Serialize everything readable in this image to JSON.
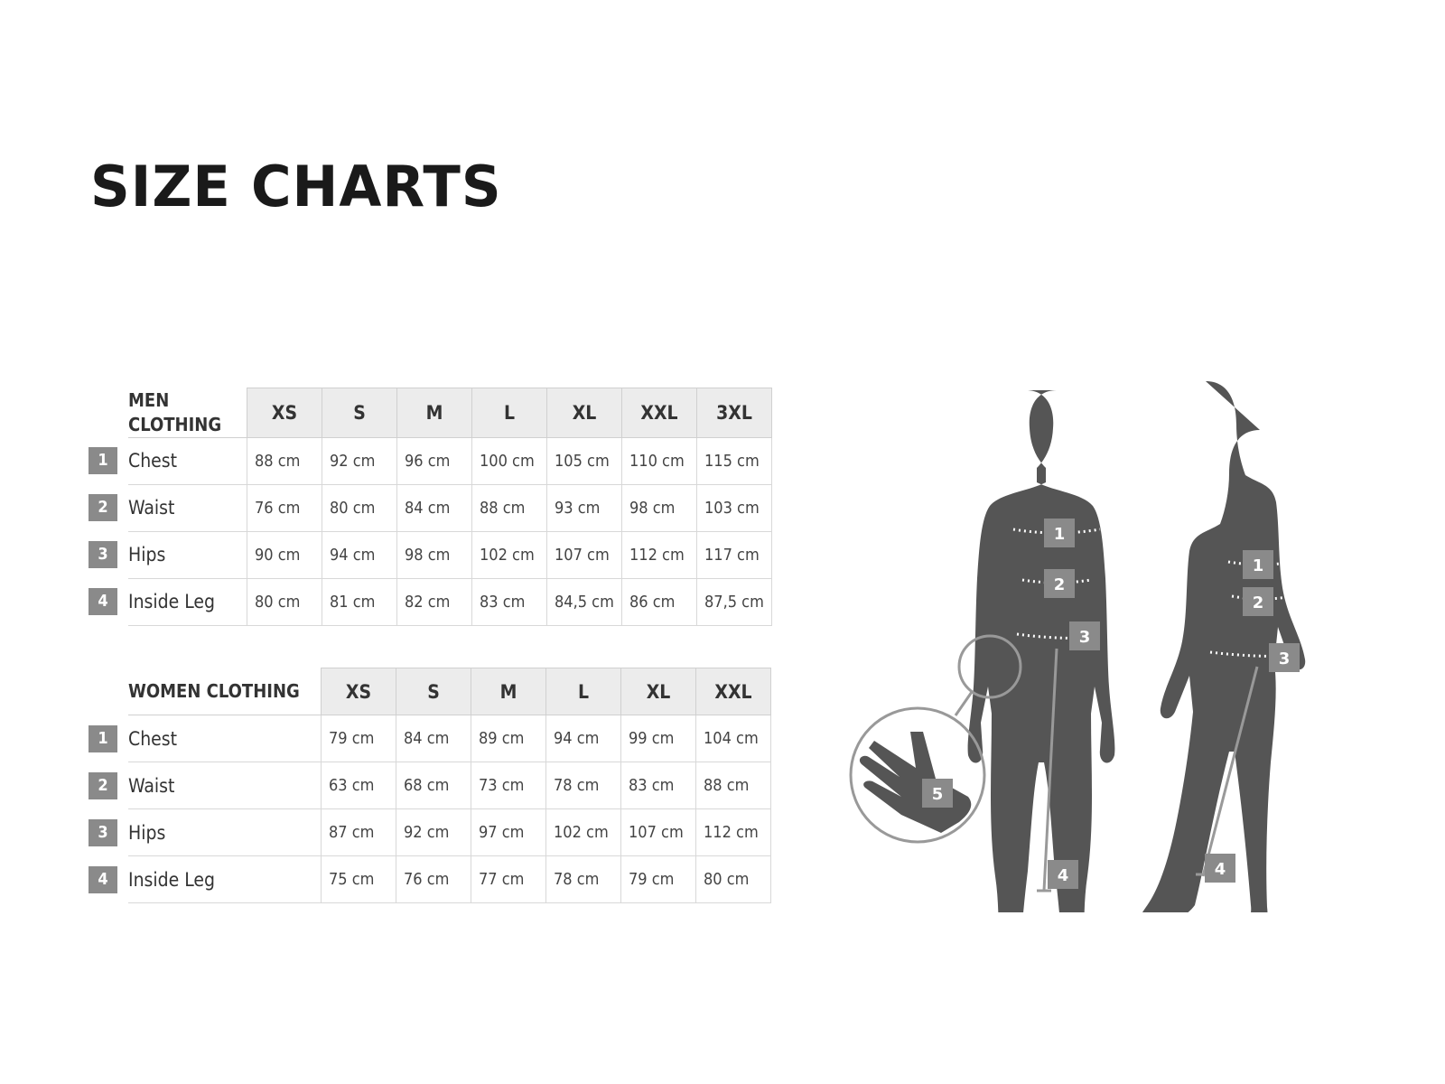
{
  "title": "SIZE CHARTS",
  "men": {
    "caption": "MEN CLOTHING",
    "sizes": [
      "XS",
      "S",
      "M",
      "L",
      "XL",
      "XXL",
      "3XL"
    ],
    "rows": [
      {
        "num": "1",
        "label": "Chest",
        "values": [
          "88 cm",
          "92 cm",
          "96 cm",
          "100 cm",
          "105 cm",
          "110 cm",
          "115 cm"
        ]
      },
      {
        "num": "2",
        "label": "Waist",
        "values": [
          "76 cm",
          "80 cm",
          "84 cm",
          "88 cm",
          "93 cm",
          "98 cm",
          "103 cm"
        ]
      },
      {
        "num": "3",
        "label": "Hips",
        "values": [
          "90 cm",
          "94 cm",
          "98 cm",
          "102 cm",
          "107 cm",
          "112 cm",
          "117 cm"
        ]
      },
      {
        "num": "4",
        "label": "Inside Leg",
        "values": [
          "80 cm",
          "81 cm",
          "82 cm",
          "83 cm",
          "84,5 cm",
          "86 cm",
          "87,5 cm"
        ]
      }
    ]
  },
  "women": {
    "caption": "WOMEN CLOTHING",
    "sizes": [
      "XS",
      "S",
      "M",
      "L",
      "XL",
      "XXL"
    ],
    "rows": [
      {
        "num": "1",
        "label": "Chest",
        "values": [
          "79 cm",
          "84 cm",
          "89 cm",
          "94 cm",
          "99 cm",
          "104 cm"
        ]
      },
      {
        "num": "2",
        "label": "Waist",
        "values": [
          "63 cm",
          "68 cm",
          "73 cm",
          "78 cm",
          "83 cm",
          "88 cm"
        ]
      },
      {
        "num": "3",
        "label": "Hips",
        "values": [
          "87 cm",
          "92 cm",
          "97 cm",
          "102 cm",
          "107 cm",
          "112 cm"
        ]
      },
      {
        "num": "4",
        "label": "Inside Leg",
        "values": [
          "75 cm",
          "76 cm",
          "77 cm",
          "78 cm",
          "79 cm",
          "80 cm"
        ]
      }
    ]
  },
  "figure": {
    "man_markers": [
      "1",
      "2",
      "3",
      "4"
    ],
    "woman_markers": [
      "1",
      "2",
      "3",
      "4"
    ],
    "hand_marker": "5",
    "silhouette_color": "#555555",
    "marker_color": "#8a8a8a"
  }
}
